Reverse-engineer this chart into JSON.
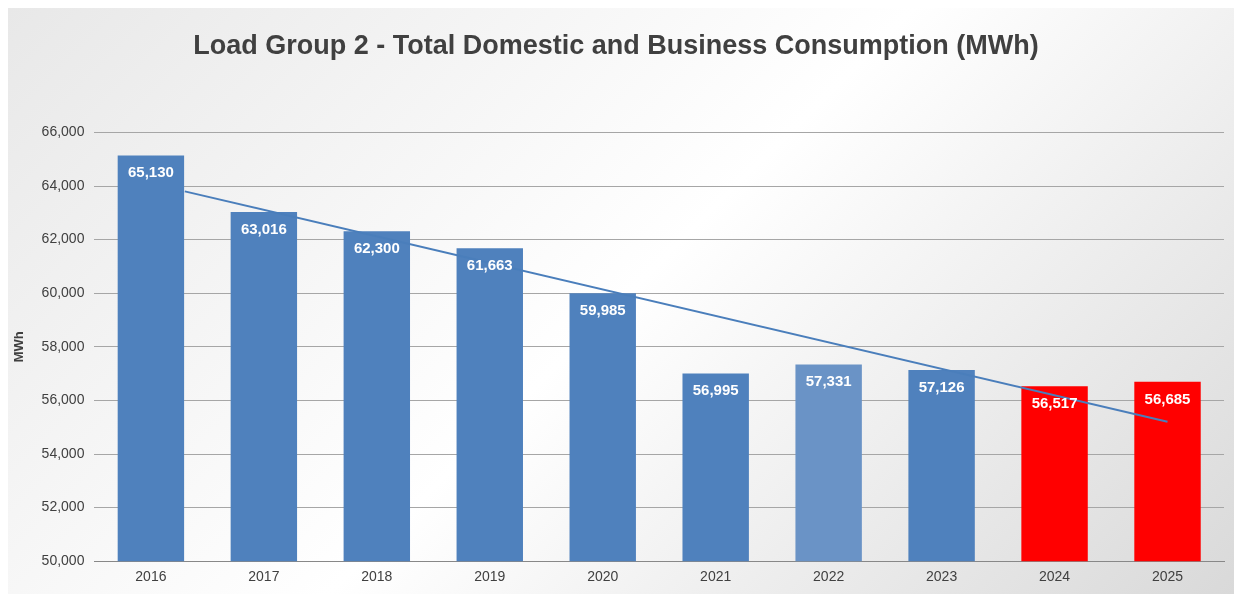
{
  "chart_data": {
    "type": "bar",
    "title": "Load Group 2 - Total Domestic and Business Consumption (MWh)",
    "ylabel": "MWh",
    "x": [
      2016,
      2017,
      2018,
      2019,
      2020,
      2021,
      2022,
      2023,
      2024,
      2025
    ],
    "xlim": [
      2015.5,
      2025.5
    ],
    "xticks": [
      2016,
      2017,
      2018,
      2019,
      2020,
      2021,
      2022,
      2023,
      2024,
      2025
    ],
    "series": [
      {
        "values": [
          65130,
          63016,
          62300,
          61663,
          59985,
          56995,
          57331,
          57126,
          56517,
          56685
        ],
        "value_labels": [
          "65,130",
          "63,016",
          "62,300",
          "61,663",
          "59,985",
          "56,995",
          "57,331",
          "57,126",
          "56,517",
          "56,685"
        ],
        "colors": [
          "#4f81bd",
          "#4f81bd",
          "#4f81bd",
          "#4f81bd",
          "#4f81bd",
          "#4f81bd",
          "#6a93c6",
          "#4f81bd",
          "#ff0000",
          "#ff0000"
        ]
      },
      {
        "type": "line",
        "color": "#4a7ebb",
        "x": [
          2016.3,
          2025
        ],
        "values": [
          63800,
          55200
        ]
      }
    ],
    "ylim": [
      50000,
      66000
    ],
    "yticks": [
      {
        "value": 50000,
        "label": "50,000"
      },
      {
        "value": 52000,
        "label": "52,000"
      },
      {
        "value": 54000,
        "label": "54,000"
      },
      {
        "value": 56000,
        "label": "56,000"
      },
      {
        "value": 58000,
        "label": "58,000"
      },
      {
        "value": 60000,
        "label": "60,000"
      },
      {
        "value": 62000,
        "label": "62,000"
      },
      {
        "value": 64000,
        "label": "64,000"
      },
      {
        "value": 66000,
        "label": "66,000"
      }
    ],
    "grid": "y",
    "legend": false
  }
}
